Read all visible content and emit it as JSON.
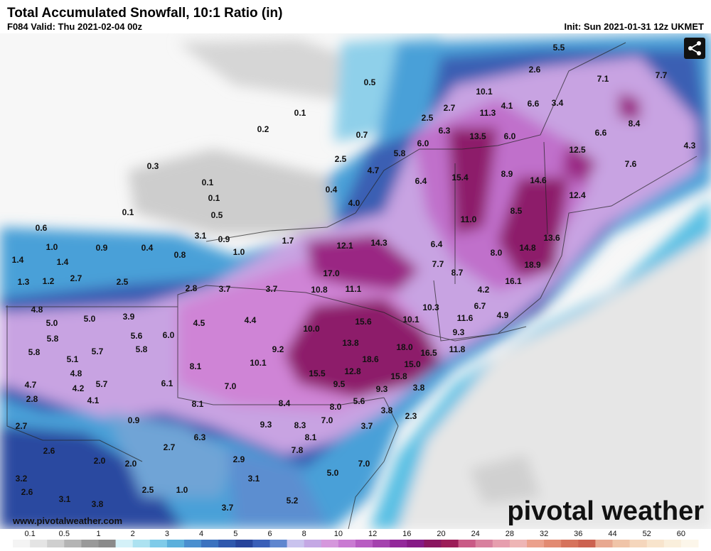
{
  "header": {
    "title": "Total Accumulated Snowfall, 10:1 Ratio (in)",
    "valid": "F084 Valid: Thu 2021-02-04 00z",
    "init": "Init: Sun 2021-01-31 12z UKMET"
  },
  "map": {
    "labels": [
      "5.5",
      "2.6",
      "7.1",
      "7.7",
      "0.5",
      "10.1",
      "4.1",
      "6.6",
      "3.4",
      "0.1",
      "11.3",
      "2.5",
      "2.7",
      "8.4",
      "0.2",
      "6.3",
      "13.5",
      "6.0",
      "6.6",
      "0.7",
      "6.0",
      "5.8",
      "12.5",
      "4.3",
      "2.5",
      "0.3",
      "4.7",
      "7.6",
      "15.4",
      "8.9",
      "14.6",
      "0.1",
      "6.4",
      "0.4",
      "12.4",
      "0.1",
      "4.0",
      "8.5",
      "0.1",
      "0.5",
      "11.0",
      "0.6",
      "3.1",
      "0.9",
      "1.7",
      "13.6",
      "12.1",
      "14.3",
      "6.4",
      "1.0",
      "0.9",
      "0.4",
      "1.0",
      "14.8",
      "0.8",
      "8.0",
      "1.4",
      "1.4",
      "7.7",
      "18.9",
      "17.0",
      "8.7",
      "2.7",
      "1.3",
      "1.2",
      "2.5",
      "16.1",
      "2.8",
      "3.7",
      "3.7",
      "10.8",
      "11.1",
      "4.2",
      "6.7",
      "4.8",
      "10.3",
      "3.9",
      "5.0",
      "11.6",
      "4.9",
      "5.0",
      "15.6",
      "10.1",
      "4.5",
      "4.4",
      "10.0",
      "5.6",
      "6.0",
      "5.8",
      "9.3",
      "13.8",
      "18.0",
      "11.8",
      "5.8",
      "5.7",
      "5.8",
      "9.2",
      "16.5",
      "5.1",
      "18.6",
      "8.1",
      "10.1",
      "15.0",
      "4.8",
      "15.5",
      "12.8",
      "15.8",
      "4.7",
      "5.7",
      "6.1",
      "7.0",
      "9.5",
      "9.3",
      "4.2",
      "3.8",
      "2.8",
      "4.1",
      "5.6",
      "8.1",
      "8.4",
      "8.0",
      "3.8",
      "2.3",
      "0.9",
      "9.3",
      "8.3",
      "7.0",
      "3.7",
      "2.7",
      "6.3",
      "8.1",
      "2.7",
      "7.8",
      "2.6",
      "2.0",
      "2.0",
      "2.9",
      "7.0",
      "5.0",
      "3.2",
      "3.1",
      "2.6",
      "2.5",
      "1.0",
      "3.1",
      "3.8",
      "5.2",
      "3.7"
    ]
  },
  "legend": {
    "ticks": [
      "0.1",
      "0.5",
      "1",
      "2",
      "3",
      "4",
      "5",
      "6",
      "8",
      "10",
      "12",
      "16",
      "20",
      "24",
      "28",
      "32",
      "36",
      "44",
      "52",
      "60"
    ],
    "colors": [
      "#f4f4f4",
      "#e4e4e4",
      "#cfcfcf",
      "#b4b4b4",
      "#999999",
      "#8a8a8a",
      "#d4f1f8",
      "#ace2f1",
      "#7fcbe9",
      "#5bb0dc",
      "#4a8fcf",
      "#3b72bf",
      "#2f58ad",
      "#27449b",
      "#3a5fb8",
      "#5f86cf",
      "#c9c3ee",
      "#c4a8e4",
      "#d597dc",
      "#c97ad2",
      "#b85cc2",
      "#a442ae",
      "#93289a",
      "#861a86",
      "#8a1660",
      "#9c1d58",
      "#c95a86",
      "#d8809e",
      "#e69eae",
      "#eeb5b5",
      "#eba08c",
      "#e28a72",
      "#d6735c",
      "#cc6250",
      "#e8a890",
      "#f0c4a8",
      "#f5d6bc",
      "#f8e4cc",
      "#faefdc",
      "#fcf6ea"
    ]
  },
  "footer": {
    "url": "www.pivotalweather.com",
    "logo": "pivotal weather"
  }
}
